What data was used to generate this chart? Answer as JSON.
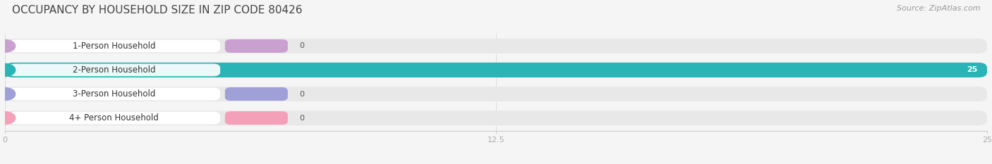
{
  "title": "OCCUPANCY BY HOUSEHOLD SIZE IN ZIP CODE 80426",
  "source": "Source: ZipAtlas.com",
  "categories": [
    "1-Person Household",
    "2-Person Household",
    "3-Person Household",
    "4+ Person Household"
  ],
  "values": [
    0,
    25,
    0,
    0
  ],
  "bar_colors": [
    "#c9a0d0",
    "#29b5b5",
    "#a0a0d8",
    "#f4a0b8"
  ],
  "bar_bg_color": "#e8e8e8",
  "label_bg_color": "#ffffff",
  "xlim": [
    0,
    25
  ],
  "xticks": [
    0,
    12.5,
    25
  ],
  "background_color": "#f5f5f5",
  "title_fontsize": 11,
  "source_fontsize": 8,
  "bar_label_fontsize": 8.5,
  "value_label_fontsize": 8
}
